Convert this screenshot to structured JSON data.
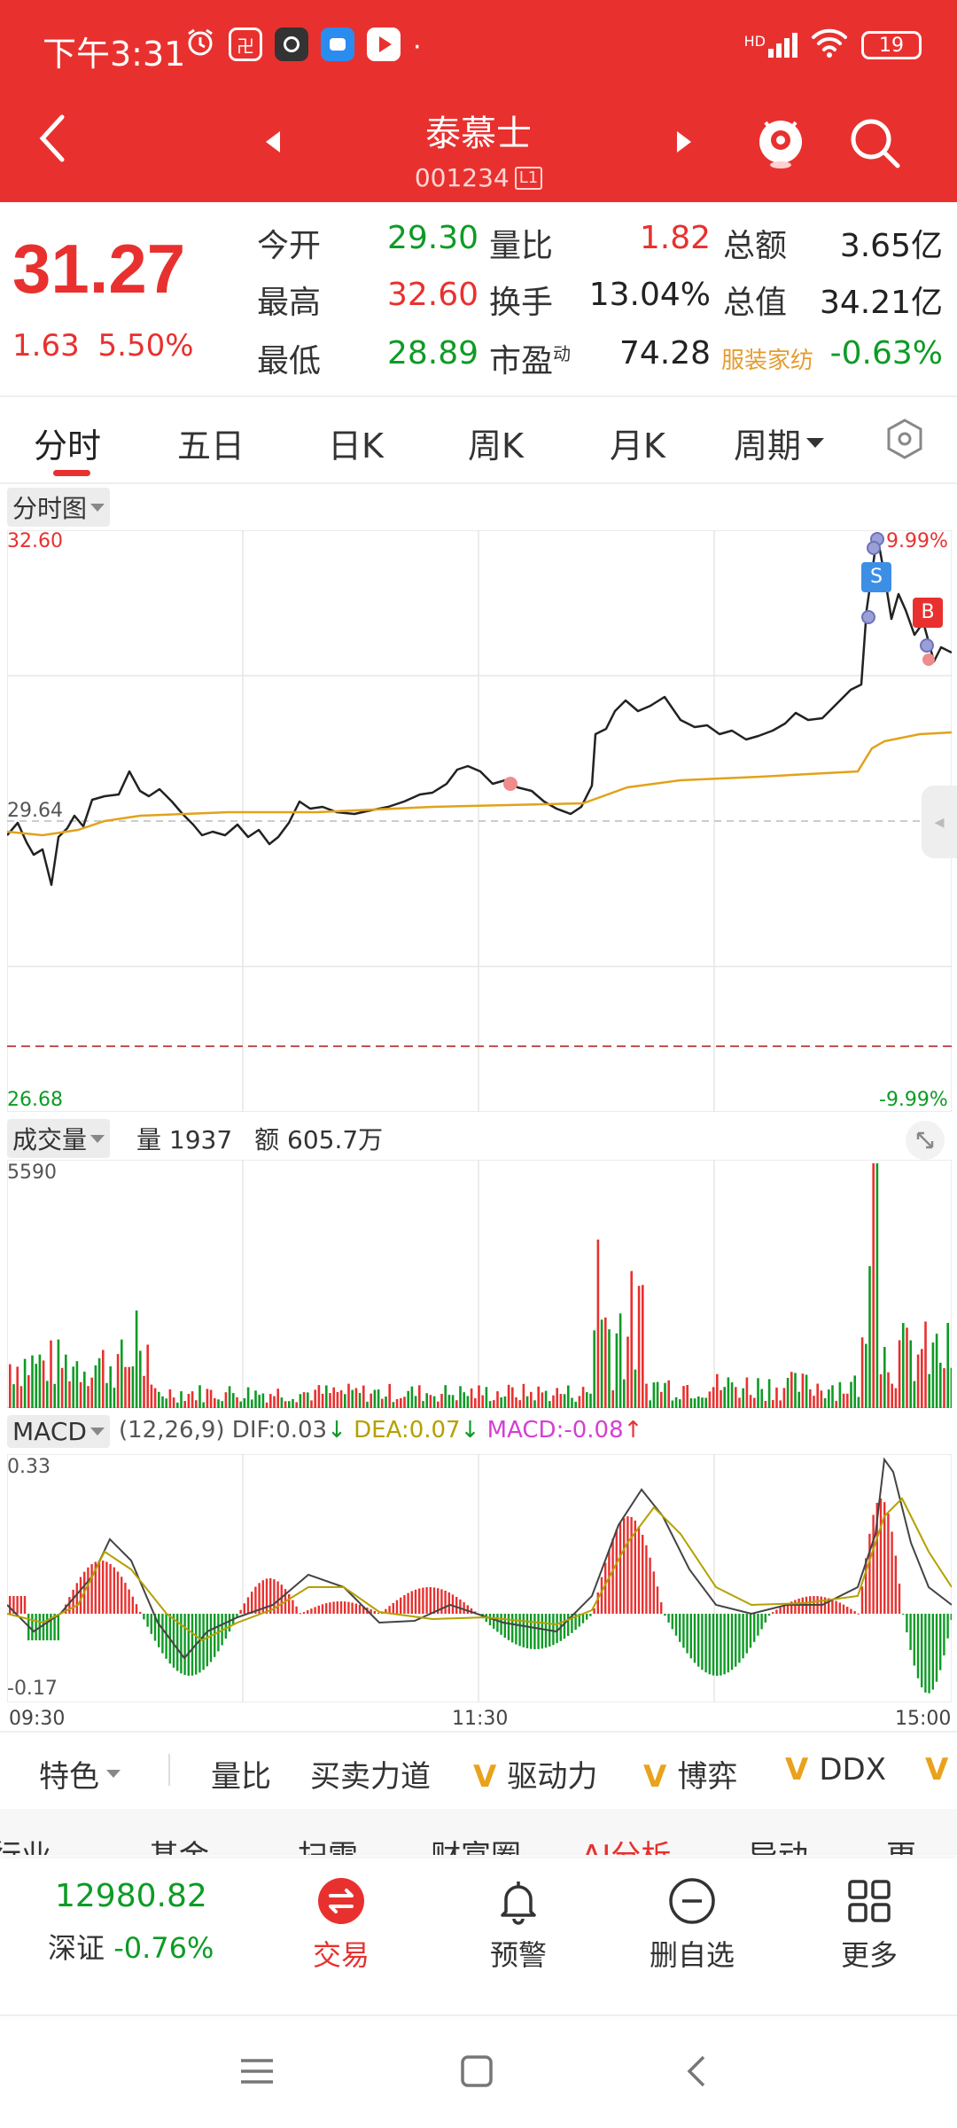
{
  "status_bar": {
    "time": "下午3:31",
    "battery": "19",
    "network": "HD"
  },
  "header": {
    "stock_name": "泰慕士",
    "stock_code": "001234",
    "level_badge": "L1",
    "icons": [
      "back-icon",
      "prev-stock-icon",
      "next-stock-icon",
      "robot-assistant-icon",
      "search-icon"
    ]
  },
  "quote": {
    "price": "31.27",
    "change": "1.63",
    "change_pct": "5.50%",
    "fields": {
      "open_label": "今开",
      "open": "29.30",
      "high_label": "最高",
      "high": "32.60",
      "low_label": "最低",
      "low": "28.89",
      "vol_ratio_label": "量比",
      "vol_ratio": "1.82",
      "turnover_label": "换手",
      "turnover": "13.04%",
      "pe_label": "市盈",
      "pe_sup": "动",
      "pe": "74.28",
      "amount_label": "总额",
      "amount": "3.65亿",
      "mktcap_label": "总值",
      "mktcap": "34.21亿",
      "industry_label": "服装家纺",
      "industry_chg": "-0.63%"
    }
  },
  "tabs": [
    "分时",
    "五日",
    "日K",
    "周K",
    "月K",
    "周期"
  ],
  "intraday": {
    "tag": "分时图",
    "top_price": "32.60",
    "top_pct": "9.99%",
    "mid_price": "29.64",
    "bottom_price": "26.68",
    "bottom_pct": "-9.99%",
    "sell_marker": "S",
    "buy_marker": "B",
    "time_start": "09:30",
    "time_mid": "11:30",
    "time_end": "15:00"
  },
  "volume": {
    "tag": "成交量",
    "vol_label": "量",
    "vol": "1937",
    "amt_label": "额",
    "amt": "605.7万",
    "max": "5590"
  },
  "macd": {
    "tag": "MACD",
    "params": "(12,26,9)",
    "dif_label": "DIF:",
    "dif": "0.03",
    "dea_label": "DEA:",
    "dea": "0.07",
    "macd_label": "MACD:",
    "macd": "-0.08",
    "top": "0.33",
    "bottom": "-0.17"
  },
  "indicator_tabs": [
    "特色",
    "量比",
    "买卖力道",
    "驱动力",
    "博弈",
    "DDX"
  ],
  "sub_tabs": [
    "行业",
    "基金",
    "扫雷",
    "财富圈",
    "AI分析",
    "异动",
    "更"
  ],
  "bottom_bar": {
    "index_value": "12980.82",
    "index_name": "深证",
    "index_change": "-0.76%",
    "items": [
      "交易",
      "预警",
      "删自选",
      "更多"
    ]
  },
  "colors": {
    "brand_red": "#e8312f",
    "up_red": "#e8312f",
    "down_green": "#0d9b25",
    "avg_line": "#e2a21a",
    "price_line": "#222222"
  }
}
